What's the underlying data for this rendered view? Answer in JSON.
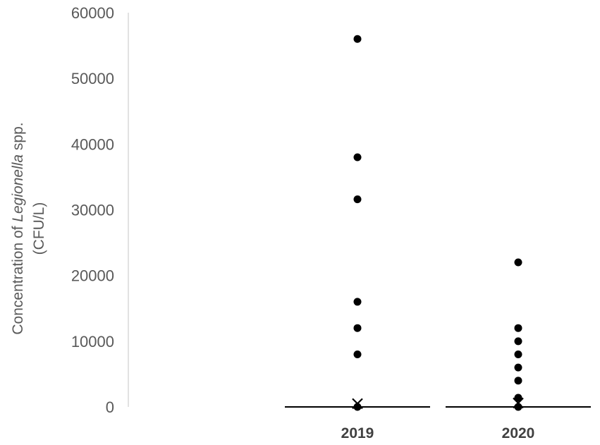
{
  "chart_data": {
    "type": "scatter",
    "title": "",
    "xlabel": "",
    "ylabel": {
      "line1_prefix": "Concentration of ",
      "line1_italic": "Legionella",
      "line1_suffix": " spp.",
      "line2": "(CFU/L)"
    },
    "ylim": [
      0,
      60000
    ],
    "yticks": [
      "0",
      "10000",
      "20000",
      "30000",
      "40000",
      "50000",
      "60000"
    ],
    "categories": [
      "2019",
      "2020"
    ],
    "series": [
      {
        "category": "2019",
        "points": [
          56000,
          38000,
          31600,
          16000,
          12000,
          8000,
          0
        ],
        "mean_marker": 500,
        "median_line": 0
      },
      {
        "category": "2020",
        "points": [
          22000,
          12000,
          10000,
          8000,
          6000,
          4000,
          1400,
          0
        ],
        "mean_marker": 600,
        "median_line": 0
      }
    ],
    "grid": false,
    "legend": "none",
    "colors": {
      "points": "#000000",
      "axis": "#d9d9d9",
      "text": "#595959"
    }
  }
}
